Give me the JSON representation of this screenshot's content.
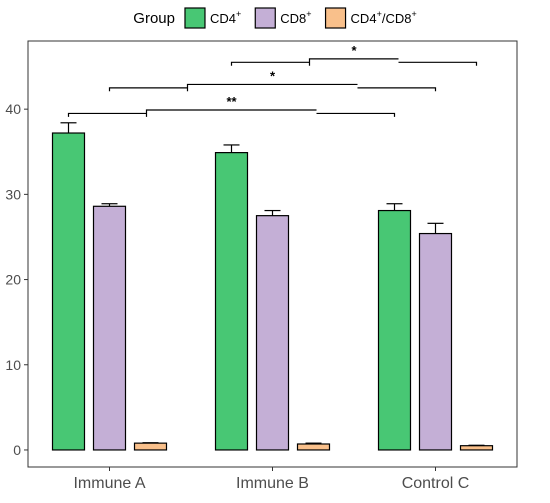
{
  "chart_data": {
    "type": "bar",
    "categories": [
      "Immune A",
      "Immune B",
      "Control C"
    ],
    "legend": {
      "title": "Group",
      "position": "top",
      "entries": [
        {
          "base": "CD4",
          "sup": "+",
          "color": "#48c774"
        },
        {
          "base": "CD8",
          "sup": "+",
          "color": "#c4afd6"
        },
        {
          "base": "CD4",
          "sup": "+",
          "mid": "/CD8",
          "sup2": "+",
          "color": "#f9c08b"
        }
      ]
    },
    "series": [
      {
        "name": "CD4+",
        "color": "#48c774",
        "values": [
          37.2,
          34.9,
          28.1
        ],
        "errors": [
          1.2,
          0.9,
          0.8
        ]
      },
      {
        "name": "CD8+",
        "color": "#c4afd6",
        "values": [
          28.6,
          27.5,
          25.4
        ],
        "errors": [
          0.3,
          0.6,
          1.2
        ]
      },
      {
        "name": "CD4+/CD8+",
        "color": "#f9c08b",
        "values": [
          0.8,
          0.7,
          0.5
        ],
        "errors": [
          0.05,
          0.1,
          0.05
        ]
      }
    ],
    "ylim": [
      -2,
      48
    ],
    "yticks": [
      0,
      10,
      20,
      30,
      40
    ],
    "xlabel": "",
    "ylabel": "",
    "grid": false,
    "significance": [
      {
        "from": [
          "Immune A",
          "CD4+"
        ],
        "to": [
          "Control C",
          "CD4+"
        ],
        "y": 39.5,
        "label": "**"
      },
      {
        "from": [
          "Immune A",
          "CD8+"
        ],
        "to": [
          "Control C",
          "CD8+"
        ],
        "y": 42.5,
        "label": "*"
      },
      {
        "from": [
          "Immune B",
          "CD4+"
        ],
        "to": [
          "Control C",
          "CD4+/CD8+"
        ],
        "y": 45.5,
        "label": "*"
      }
    ]
  }
}
